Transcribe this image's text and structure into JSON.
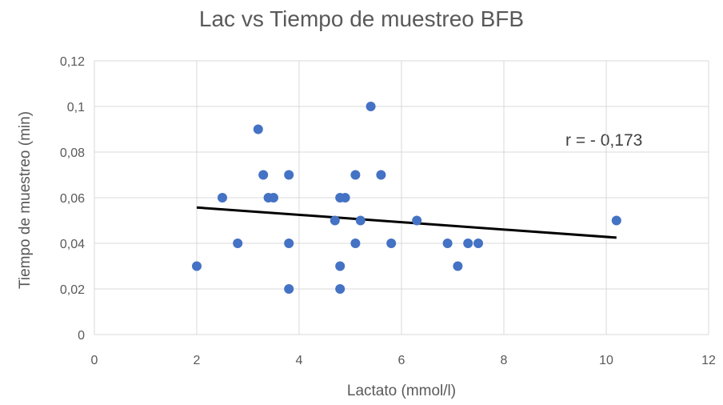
{
  "chart_data": {
    "type": "scatter",
    "title": "Lac vs Tiempo de muestreo BFB",
    "xlabel": "Lactato (mmol/l)",
    "ylabel": "Tiempo de muestreo (min)",
    "xlim": [
      0,
      12
    ],
    "ylim": [
      0,
      0.12
    ],
    "x_ticks": [
      "0",
      "2",
      "4",
      "6",
      "8",
      "10",
      "12"
    ],
    "y_ticks": [
      "0",
      "0,02",
      "0,04",
      "0,06",
      "0,08",
      "0,1",
      "0,12"
    ],
    "grid": true,
    "marker_color": "#4472C4",
    "trendline_color": "#000000",
    "trendline": {
      "x": [
        2,
        10.2
      ],
      "y": [
        0.0557,
        0.0425
      ]
    },
    "annotation": "r = - 0,173",
    "points": [
      {
        "x": 2.0,
        "y": 0.03
      },
      {
        "x": 2.5,
        "y": 0.06
      },
      {
        "x": 2.8,
        "y": 0.04
      },
      {
        "x": 3.2,
        "y": 0.09
      },
      {
        "x": 3.3,
        "y": 0.07
      },
      {
        "x": 3.4,
        "y": 0.06
      },
      {
        "x": 3.5,
        "y": 0.06
      },
      {
        "x": 3.8,
        "y": 0.07
      },
      {
        "x": 3.8,
        "y": 0.04
      },
      {
        "x": 3.8,
        "y": 0.02
      },
      {
        "x": 4.7,
        "y": 0.05
      },
      {
        "x": 4.8,
        "y": 0.06
      },
      {
        "x": 4.9,
        "y": 0.06
      },
      {
        "x": 4.8,
        "y": 0.03
      },
      {
        "x": 4.8,
        "y": 0.02
      },
      {
        "x": 5.1,
        "y": 0.07
      },
      {
        "x": 5.2,
        "y": 0.05
      },
      {
        "x": 5.1,
        "y": 0.04
      },
      {
        "x": 5.4,
        "y": 0.1
      },
      {
        "x": 5.6,
        "y": 0.07
      },
      {
        "x": 5.8,
        "y": 0.04
      },
      {
        "x": 6.3,
        "y": 0.05
      },
      {
        "x": 6.9,
        "y": 0.04
      },
      {
        "x": 7.1,
        "y": 0.03
      },
      {
        "x": 7.3,
        "y": 0.04
      },
      {
        "x": 7.5,
        "y": 0.04
      },
      {
        "x": 10.2,
        "y": 0.05
      }
    ]
  }
}
